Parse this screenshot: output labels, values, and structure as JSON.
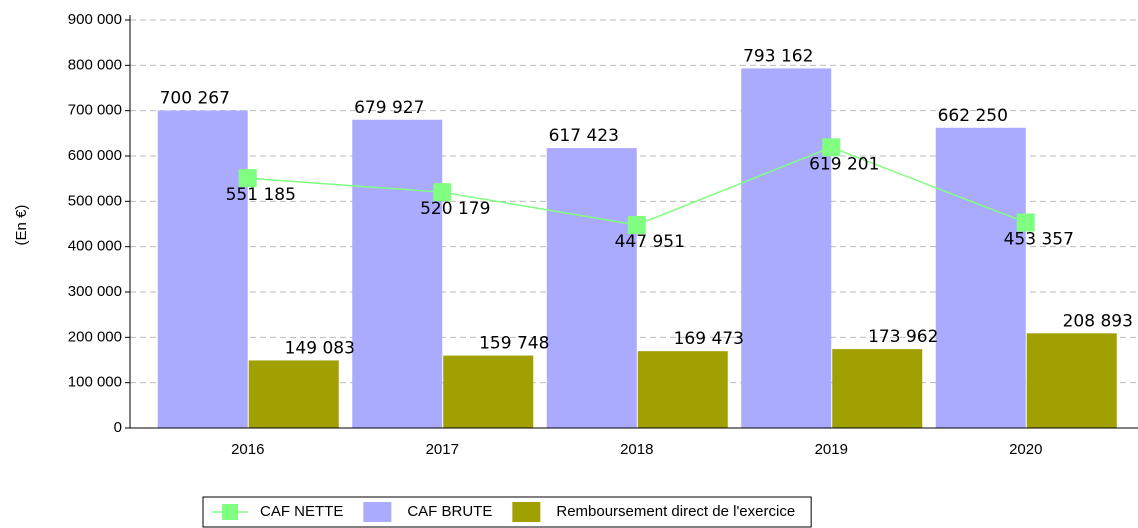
{
  "chart_data": {
    "type": "bar",
    "y_label": "(En €)",
    "categories": [
      "2016",
      "2017",
      "2018",
      "2019",
      "2020"
    ],
    "series": [
      {
        "name": "CAF NETTE",
        "type": "line",
        "color": "#80ff80",
        "values": [
          551185,
          520179,
          447951,
          619201,
          453357
        ],
        "value_labels": [
          "551 185",
          "520 179",
          "447 951",
          "619 201",
          "453 357"
        ]
      },
      {
        "name": "CAF BRUTE",
        "type": "bar",
        "color": "#aaaaff",
        "values": [
          700267,
          679927,
          617423,
          793162,
          662250
        ],
        "value_labels": [
          "700 267",
          "679 927",
          "617 423",
          "793 162",
          "662 250"
        ]
      },
      {
        "name": "Remboursement direct de l'exercice",
        "type": "bar",
        "color": "#a0a000",
        "values": [
          149083,
          159748,
          169473,
          173962,
          208893
        ],
        "value_labels": [
          "149 083",
          "159 748",
          "169 473",
          "173 962",
          "208 893"
        ]
      }
    ],
    "ylim": [
      0,
      900000
    ],
    "yticks": [
      0,
      {
        "value": 100000,
        "label": "100 000"
      },
      {
        "value": 200000,
        "label": "200 000"
      },
      {
        "value": 300000,
        "label": "300 000"
      },
      {
        "value": 400000,
        "label": "400 000"
      },
      {
        "value": 500000,
        "label": "500 000"
      },
      {
        "value": 600000,
        "label": "600 000"
      },
      {
        "value": 700000,
        "label": "700 000"
      },
      {
        "value": 800000,
        "label": "800 000"
      },
      {
        "value": 900000,
        "label": "900 000"
      }
    ],
    "grid": true,
    "legend": "bottom"
  }
}
